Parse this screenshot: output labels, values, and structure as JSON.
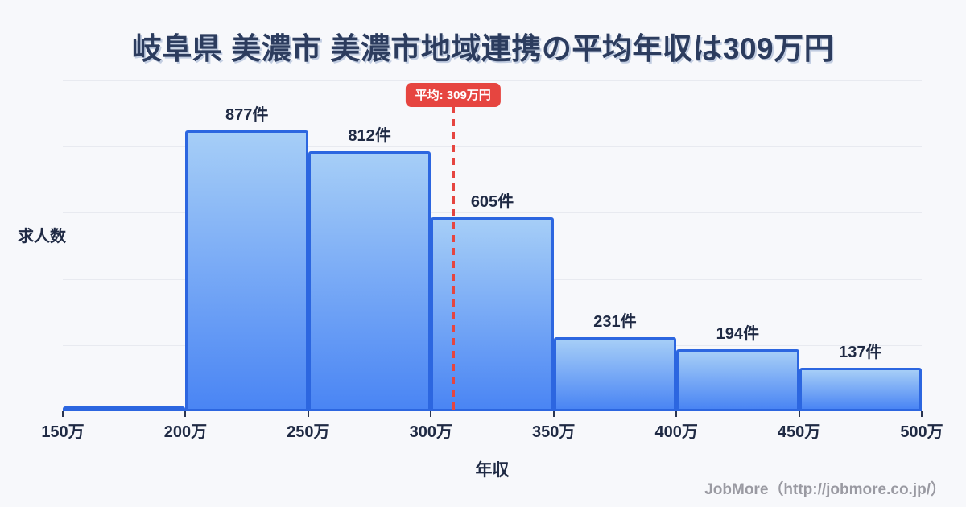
{
  "title": "岐阜県 美濃市 美濃市地域連携の平均年収は309万円",
  "footer": {
    "credit": "JobMore（http://jobmore.co.jp/）"
  },
  "chart_data": {
    "type": "bar",
    "title": "岐阜県 美濃市 美濃市地域連携の平均年収は309万円",
    "xlabel": "年収",
    "ylabel": "求人数",
    "x_tick_labels": [
      "150万",
      "200万",
      "250万",
      "300万",
      "350万",
      "400万",
      "450万",
      "500万"
    ],
    "x_range_man_yen": [
      150,
      500
    ],
    "bin_width_man_yen": 50,
    "categories": [
      "150万-200万",
      "200万-250万",
      "250万-300万",
      "300万-350万",
      "350万-400万",
      "400万-450万",
      "450万-500万"
    ],
    "values": [
      null,
      877,
      812,
      605,
      231,
      194,
      137
    ],
    "count_labels": [
      "",
      "877件",
      "812件",
      "605件",
      "231件",
      "194件",
      "137件"
    ],
    "average": {
      "value": 309,
      "label": "平均: 309万円"
    },
    "ylim": [
      0,
      1033
    ],
    "grid": true,
    "gridline_count": 5,
    "legend": "none"
  },
  "colors": {
    "background": "#f7f8fb",
    "bar_fill_top": "#a6cef7",
    "bar_fill_bottom": "#4a85f4",
    "bar_border": "#2c66e0",
    "average_red": "#e64540",
    "title_text": "#2c3c5e",
    "label_text": "#1f2a44",
    "gridline": "#e8eaf0",
    "footer_text": "#9a9aa2"
  }
}
